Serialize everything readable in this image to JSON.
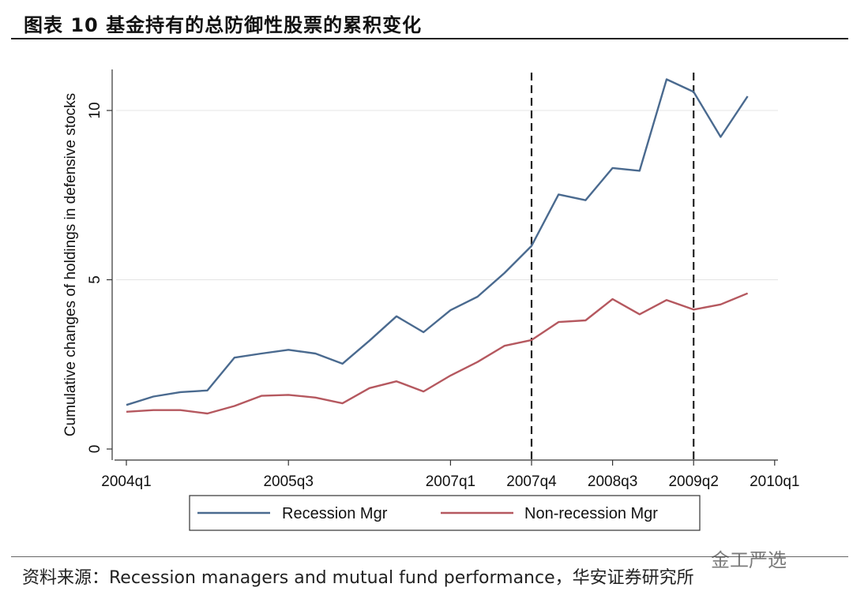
{
  "header": {
    "title": "图表 10  基金持有的总防御性股票的累积变化"
  },
  "footer": {
    "source": "资料来源：Recession managers and mutual fund performance，华安证券研究所",
    "watermark": "金工严选"
  },
  "chart_data": {
    "type": "line",
    "title": "",
    "xlabel": "",
    "ylabel": "Cumulative changes of holdings in defensive stocks",
    "xlim": [
      0,
      24
    ],
    "ylim": [
      0,
      11
    ],
    "x_ticks": [
      {
        "pos": 0,
        "label": "2004q1"
      },
      {
        "pos": 6,
        "label": "2005q3"
      },
      {
        "pos": 12,
        "label": "2007q1"
      },
      {
        "pos": 15,
        "label": "2007q4"
      },
      {
        "pos": 18,
        "label": "2008q3"
      },
      {
        "pos": 21,
        "label": "2009q2"
      },
      {
        "pos": 24,
        "label": "2010q1"
      }
    ],
    "y_ticks": [
      0,
      5,
      10
    ],
    "vlines": [
      15,
      21
    ],
    "grid": true,
    "legend_position": "bottom",
    "series": [
      {
        "name": "Recession Mgr",
        "color": "#4a6a8f",
        "x": [
          0,
          1,
          2,
          3,
          4,
          5,
          6,
          7,
          8,
          9,
          10,
          11,
          12,
          13,
          14,
          15,
          16,
          17,
          18,
          19,
          20,
          21,
          22,
          23
        ],
        "values": [
          1.3,
          1.55,
          1.68,
          1.73,
          2.7,
          2.82,
          2.93,
          2.82,
          2.52,
          3.2,
          3.92,
          3.45,
          4.1,
          4.5,
          5.2,
          6.0,
          7.52,
          7.35,
          8.3,
          8.22,
          10.92,
          10.55,
          9.22,
          10.42
        ]
      },
      {
        "name": "Non-recession Mgr",
        "color": "#b5585f",
        "x": [
          0,
          1,
          2,
          3,
          4,
          5,
          6,
          7,
          8,
          9,
          10,
          11,
          12,
          13,
          14,
          15,
          16,
          17,
          18,
          19,
          20,
          21,
          22,
          23
        ],
        "values": [
          1.1,
          1.15,
          1.15,
          1.05,
          1.27,
          1.57,
          1.6,
          1.52,
          1.35,
          1.8,
          2.0,
          1.7,
          2.17,
          2.57,
          3.05,
          3.22,
          3.75,
          3.8,
          4.43,
          3.98,
          4.4,
          4.12,
          4.27,
          4.6
        ]
      }
    ]
  }
}
